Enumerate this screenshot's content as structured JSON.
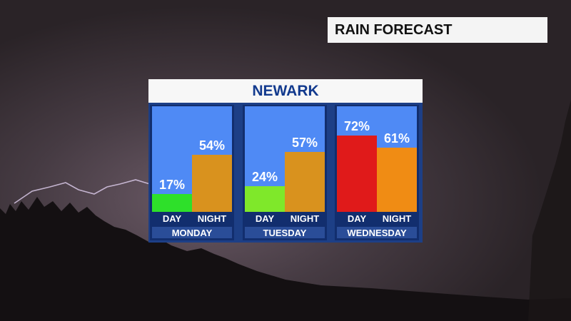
{
  "header": {
    "title": "RAIN FORECAST"
  },
  "location": "NEWARK",
  "colors": {
    "plot_background": "#4f8af5",
    "low_day": "#2ee02a",
    "mid_day": "#7fe82a",
    "high_day": "#e01a1a",
    "night": "#d9921e",
    "night_bright": "#f08c14"
  },
  "chart_data": {
    "type": "bar",
    "title": "NEWARK",
    "ylim": [
      0,
      100
    ],
    "unit": "%",
    "groups": [
      {
        "name": "MONDAY",
        "bars": [
          {
            "label": "DAY",
            "value": 17,
            "text": "17%",
            "color": "#2ee02a"
          },
          {
            "label": "NIGHT",
            "value": 54,
            "text": "54%",
            "color": "#d9921e"
          }
        ]
      },
      {
        "name": "TUESDAY",
        "bars": [
          {
            "label": "DAY",
            "value": 24,
            "text": "24%",
            "color": "#7fe82a"
          },
          {
            "label": "NIGHT",
            "value": 57,
            "text": "57%",
            "color": "#d9921e"
          }
        ]
      },
      {
        "name": "WEDNESDAY",
        "bars": [
          {
            "label": "DAY",
            "value": 72,
            "text": "72%",
            "color": "#e01a1a"
          },
          {
            "label": "NIGHT",
            "value": 61,
            "text": "61%",
            "color": "#f08c14"
          }
        ]
      }
    ]
  }
}
